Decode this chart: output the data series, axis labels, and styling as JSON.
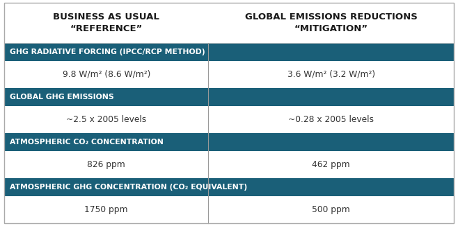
{
  "header_col1": "BUSINESS AS USUAL\n“REFERENCE”",
  "header_col2": "GLOBAL EMISSIONS REDUCTIONS\n“MITIGATION”",
  "header_bg": "#ffffff",
  "header_text_color": "#1a1a1a",
  "row_header_bg": "#1a5f78",
  "row_header_text_color": "#ffffff",
  "data_bg": "#ffffff",
  "data_text_color": "#333333",
  "divider_color": "#aaaaaa",
  "col_div": 0.455,
  "rows": [
    {
      "label": "GHG RADIATIVE FORCING (IPCC/RCP METHOD)",
      "col1": "9.8 W/m² (8.6 W/m²)",
      "col2": "3.6 W/m² (3.2 W/m²)"
    },
    {
      "label": "GLOBAL GHG EMISSIONS",
      "col1": "~2.5 x 2005 levels",
      "col2": "~0.28 x 2005 levels"
    },
    {
      "label": "ATMOSPHERIC CO₂ CONCENTRATION",
      "col1": "826 ppm",
      "col2": "462 ppm"
    },
    {
      "label": "ATMOSPHERIC GHG CONCENTRATION (CO₂ EQUIVALENT)",
      "col1": "1750 ppm",
      "col2": "500 ppm"
    }
  ],
  "header_fontsize": 9.5,
  "label_fontsize": 7.8,
  "data_fontsize": 8.8
}
